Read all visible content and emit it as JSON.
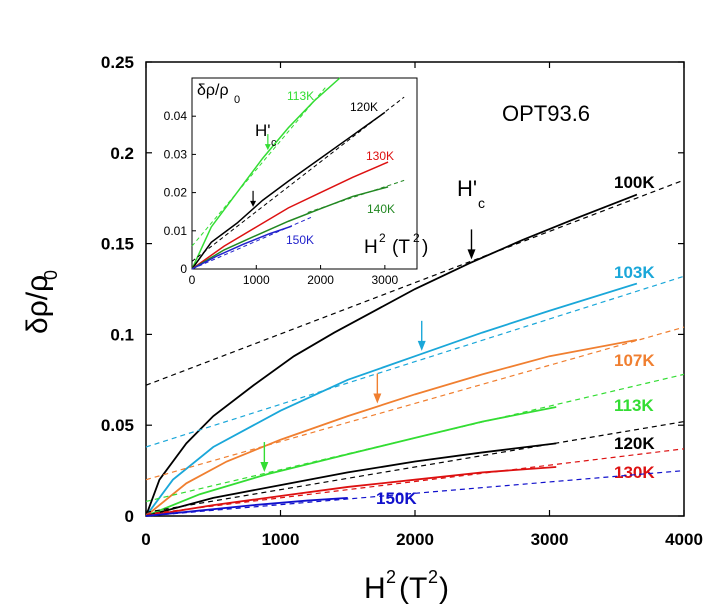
{
  "chart_data": [
    {
      "id": "main",
      "type": "line",
      "title": "OPT93.6",
      "xlabel": "H²  (T²)",
      "ylabel": "δρ/ρ₀",
      "xlim": [
        0,
        4000
      ],
      "ylim": [
        0,
        0.25
      ],
      "xticks": [
        0,
        1000,
        2000,
        3000,
        4000
      ],
      "xtick_labels": [
        "0",
        "1000",
        "2000",
        "3000",
        "4000"
      ],
      "yticks": [
        0,
        0.05,
        0.1,
        0.15,
        0.2,
        0.25
      ],
      "ytick_labels": [
        "0",
        "0.05",
        "0.1",
        "0.15",
        "0.2",
        "0.25"
      ],
      "hc_label": "H'",
      "hc_sub": "c",
      "series": [
        {
          "name": "100K",
          "color": "#000000",
          "x": [
            0,
            100,
            300,
            500,
            800,
            1100,
            1400,
            1700,
            2000,
            2400,
            2800,
            3200,
            3650
          ],
          "y": [
            0,
            0.02,
            0.04,
            0.055,
            0.072,
            0.088,
            0.101,
            0.113,
            0.125,
            0.139,
            0.152,
            0.164,
            0.177
          ],
          "fit_x": [
            0,
            4000
          ],
          "fit_y": [
            0.072,
            0.185
          ],
          "hc": 2420
        },
        {
          "name": "103K",
          "color": "#1aa7d9",
          "x": [
            0,
            200,
            500,
            1000,
            1500,
            2000,
            2500,
            3000,
            3650
          ],
          "y": [
            0,
            0.02,
            0.038,
            0.058,
            0.075,
            0.088,
            0.101,
            0.113,
            0.128
          ],
          "fit_x": [
            0,
            4000
          ],
          "fit_y": [
            0.038,
            0.132
          ],
          "hc": 2050
        },
        {
          "name": "107K",
          "color": "#f07f30",
          "x": [
            0,
            300,
            600,
            1000,
            1500,
            2000,
            2500,
            3000,
            3650
          ],
          "y": [
            0,
            0.018,
            0.03,
            0.042,
            0.055,
            0.067,
            0.078,
            0.088,
            0.097
          ],
          "fit_x": [
            0,
            4000
          ],
          "fit_y": [
            0.02,
            0.104
          ],
          "hc": 1720
        },
        {
          "name": "113K",
          "color": "#33dd33",
          "x": [
            0,
            400,
            900,
            1500,
            2000,
            2500,
            3050
          ],
          "y": [
            0,
            0.012,
            0.023,
            0.034,
            0.043,
            0.052,
            0.06
          ],
          "fit_x": [
            0,
            4000
          ],
          "fit_y": [
            0.008,
            0.078
          ],
          "hc": 880
        },
        {
          "name": "120K",
          "color": "#000000",
          "x": [
            0,
            500,
            1000,
            1500,
            2000,
            2500,
            3050
          ],
          "y": [
            0,
            0.01,
            0.017,
            0.024,
            0.03,
            0.035,
            0.04
          ],
          "fit_x": [
            0,
            4000
          ],
          "fit_y": [
            0.002,
            0.052
          ]
        },
        {
          "name": "130K",
          "color": "#dd1111",
          "x": [
            0,
            500,
            1000,
            1500,
            2000,
            2500,
            3050
          ],
          "y": [
            0,
            0.006,
            0.011,
            0.016,
            0.02,
            0.024,
            0.027
          ],
          "fit_x": [
            0,
            4000
          ],
          "fit_y": [
            0.001,
            0.037
          ]
        },
        {
          "name": "150K",
          "color": "#1111cc",
          "x": [
            0,
            400,
            800,
            1200,
            1500
          ],
          "y": [
            0,
            0.003,
            0.006,
            0.0085,
            0.01
          ],
          "fit_x": [
            0,
            4000
          ],
          "fit_y": [
            0.0,
            0.025
          ]
        }
      ]
    },
    {
      "id": "inset",
      "type": "line",
      "xlabel": "H²  (T²)",
      "ylabel": "δρ/ρ₀",
      "xlim": [
        0,
        3500
      ],
      "ylim": [
        0,
        0.05
      ],
      "xticks": [
        0,
        1000,
        2000,
        3000
      ],
      "xtick_labels": [
        "0",
        "1000",
        "2000",
        "3000"
      ],
      "yticks": [
        0,
        0.01,
        0.02,
        0.03,
        0.04
      ],
      "ytick_labels": [
        "0",
        "0.01",
        "0.02",
        "0.03",
        "0.04"
      ],
      "hc_label": "H'",
      "hc_sub": "c",
      "series": [
        {
          "name": "113K",
          "color": "#33dd33",
          "x": [
            0,
            300,
            700,
            1100,
            1500,
            1900,
            2300
          ],
          "y": [
            0,
            0.011,
            0.02,
            0.029,
            0.037,
            0.044,
            0.05
          ],
          "fit_x": [
            0,
            2100
          ],
          "fit_y": [
            0.006,
            0.048
          ],
          "hc": 1180
        },
        {
          "name": "120K",
          "color": "#000000",
          "x": [
            0,
            300,
            700,
            1100,
            1500,
            2000,
            2500,
            3000
          ],
          "y": [
            0,
            0.007,
            0.012,
            0.018,
            0.023,
            0.029,
            0.035,
            0.041
          ],
          "fit_x": [
            0,
            3300
          ],
          "fit_y": [
            0.002,
            0.045
          ],
          "hc": 950
        },
        {
          "name": "130K",
          "color": "#dd1111",
          "x": [
            0,
            500,
            1000,
            1500,
            2000,
            2500,
            3050
          ],
          "y": [
            0,
            0.006,
            0.011,
            0.016,
            0.02,
            0.024,
            0.028
          ]
        },
        {
          "name": "140K",
          "color": "#228822",
          "x": [
            0,
            500,
            1000,
            1500,
            2000,
            2500,
            3050
          ],
          "y": [
            0,
            0.005,
            0.0088,
            0.0125,
            0.0158,
            0.019,
            0.0215
          ],
          "fit_x": [
            1800,
            3300
          ],
          "fit_y": [
            0.0148,
            0.0232
          ]
        },
        {
          "name": "150K",
          "color": "#2222cc",
          "x": [
            0,
            400,
            800,
            1200,
            1550
          ],
          "y": [
            0,
            0.0035,
            0.0065,
            0.0092,
            0.0112
          ],
          "fit_x": [
            0,
            1850
          ],
          "fit_y": [
            0.0,
            0.0135
          ]
        }
      ]
    }
  ]
}
